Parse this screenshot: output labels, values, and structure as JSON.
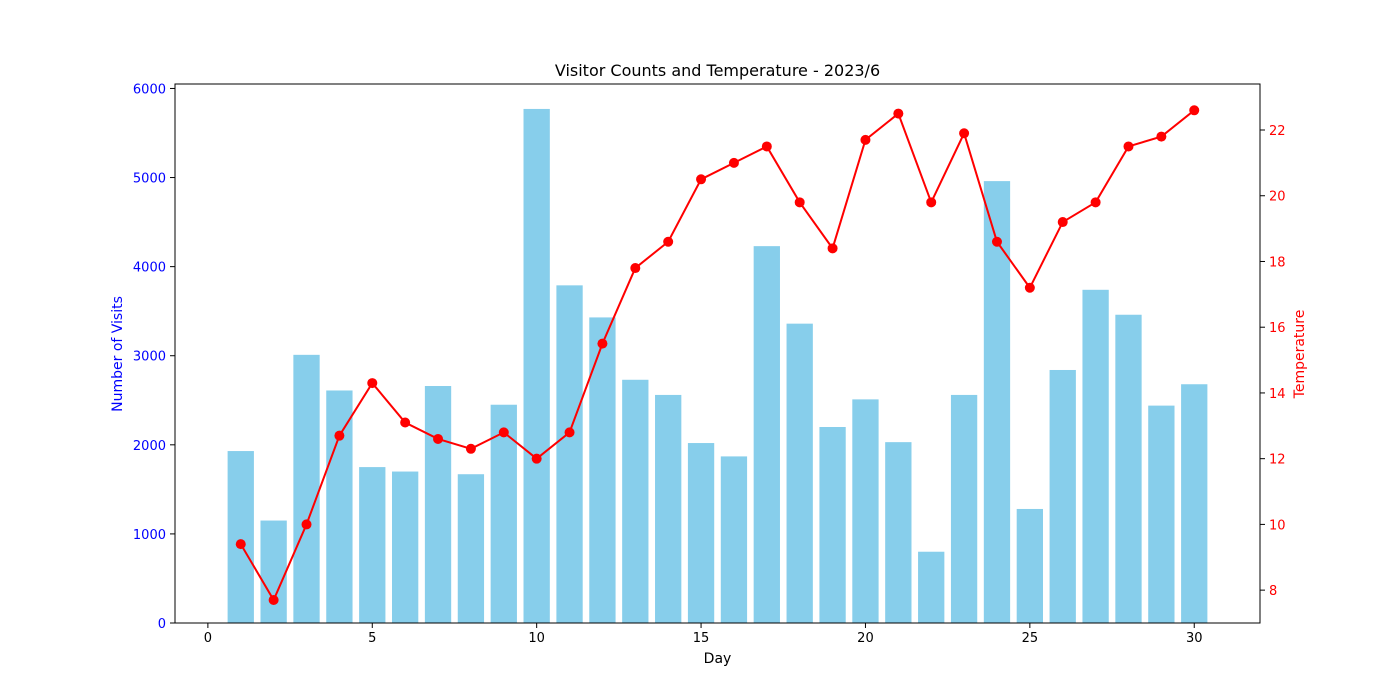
{
  "chart_data": {
    "type": "bar+line",
    "title": "Visitor Counts and Temperature - 2023/6",
    "xlabel": "Day",
    "ylabel_left": "Number of Visits",
    "ylabel_right": "Temperature",
    "xlim": [
      -1,
      32
    ],
    "ylim_left": [
      0,
      6050
    ],
    "ylim_right": [
      7,
      23.4
    ],
    "x_ticks": [
      0,
      5,
      10,
      15,
      20,
      25,
      30
    ],
    "y_left_ticks": [
      0,
      1000,
      2000,
      3000,
      4000,
      5000,
      6000
    ],
    "y_right_ticks": [
      8,
      10,
      12,
      14,
      16,
      18,
      20,
      22
    ],
    "grid": false,
    "colors": {
      "bars": "#87ceeb",
      "line": "#ff0000",
      "left_axis": "#0000ff",
      "right_axis": "#ff0000",
      "frame": "#000000"
    },
    "x": [
      1,
      2,
      3,
      4,
      5,
      6,
      7,
      8,
      9,
      10,
      11,
      12,
      13,
      14,
      15,
      16,
      17,
      18,
      19,
      20,
      21,
      22,
      23,
      24,
      25,
      26,
      27,
      28,
      29,
      30
    ],
    "series": [
      {
        "type": "bar",
        "axis": "left",
        "values": [
          1930,
          1150,
          3010,
          2610,
          1750,
          1700,
          2660,
          1670,
          2450,
          5770,
          3790,
          3430,
          2730,
          2560,
          2020,
          1870,
          4230,
          3360,
          2200,
          2510,
          2030,
          800,
          2560,
          4960,
          1280,
          2840,
          3740,
          3460,
          2440,
          2680
        ]
      },
      {
        "type": "line",
        "axis": "right",
        "marker": "circle",
        "values": [
          9.4,
          7.7,
          10.0,
          12.7,
          14.3,
          13.1,
          12.6,
          12.3,
          12.8,
          12.0,
          12.8,
          15.5,
          17.8,
          18.6,
          20.5,
          21.0,
          21.5,
          19.8,
          18.4,
          21.7,
          22.5,
          19.8,
          21.9,
          18.6,
          17.2,
          19.2,
          19.8,
          21.5,
          21.8,
          22.6
        ]
      }
    ]
  }
}
